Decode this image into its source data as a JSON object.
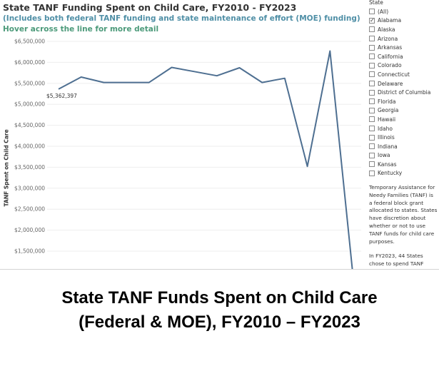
{
  "header": {
    "title": "State TANF Funding Spent on Child Care, FY2010 - FY2023",
    "subtitle": "(Includes both federal TANF funding and state maintenance of effort (MOE) funding)",
    "hint": "Hover across the line for more detail"
  },
  "chart_data": {
    "type": "line",
    "title": "State TANF Funding Spent on Child Care, FY2010 - FY2023",
    "ylabel": "TANF Spent on Child Care",
    "xlabel": "",
    "ylim": [
      1000000,
      6700000
    ],
    "yticks": [
      "$6,500,000",
      "$6,000,000",
      "$5,500,000",
      "$5,000,000",
      "$4,500,000",
      "$4,000,000",
      "$3,500,000",
      "$3,000,000",
      "$2,500,000",
      "$2,000,000",
      "$1,500,000"
    ],
    "ytick_values": [
      6500000,
      6000000,
      5500000,
      5000000,
      4500000,
      4000000,
      3500000,
      3000000,
      2500000,
      2000000,
      1500000
    ],
    "grid": true,
    "series": [
      {
        "values": [
          5362397,
          5650000,
          5520000,
          5520000,
          5520000,
          5880000,
          5780000,
          5680000,
          5870000,
          5520000,
          5620000,
          3520000,
          6270000,
          1000000
        ],
        "color": "#4e6f91"
      }
    ],
    "annotations": [
      {
        "index": 0,
        "text": "$5,362,397"
      }
    ]
  },
  "filter": {
    "title": "State",
    "options": [
      {
        "label": "(All)",
        "checked": false
      },
      {
        "label": "Alabama",
        "checked": true
      },
      {
        "label": "Alaska",
        "checked": false
      },
      {
        "label": "Arizona",
        "checked": false
      },
      {
        "label": "Arkansas",
        "checked": false
      },
      {
        "label": "California",
        "checked": false
      },
      {
        "label": "Colorado",
        "checked": false
      },
      {
        "label": "Connecticut",
        "checked": false
      },
      {
        "label": "Delaware",
        "checked": false
      },
      {
        "label": "District of Columbia",
        "checked": false
      },
      {
        "label": "Florida",
        "checked": false
      },
      {
        "label": "Georgia",
        "checked": false
      },
      {
        "label": "Hawaii",
        "checked": false
      },
      {
        "label": "Idaho",
        "checked": false
      },
      {
        "label": "Illinois",
        "checked": false
      },
      {
        "label": "Indiana",
        "checked": false
      },
      {
        "label": "Iowa",
        "checked": false
      },
      {
        "label": "Kansas",
        "checked": false
      },
      {
        "label": "Kentucky",
        "checked": false
      }
    ]
  },
  "info": {
    "para1": "Temporary Assistance for Needy Families (TANF) is a federal block grant allocated to states. States have discretion about whether or not to use TANF funds for child care purposes.",
    "para2": "In FY2023, 44 States chose to spend TANF"
  },
  "caption": {
    "line1": "State TANF Funds Spent on Child Care",
    "line2": "(Federal & MOE), FY2010 – FY2023"
  }
}
